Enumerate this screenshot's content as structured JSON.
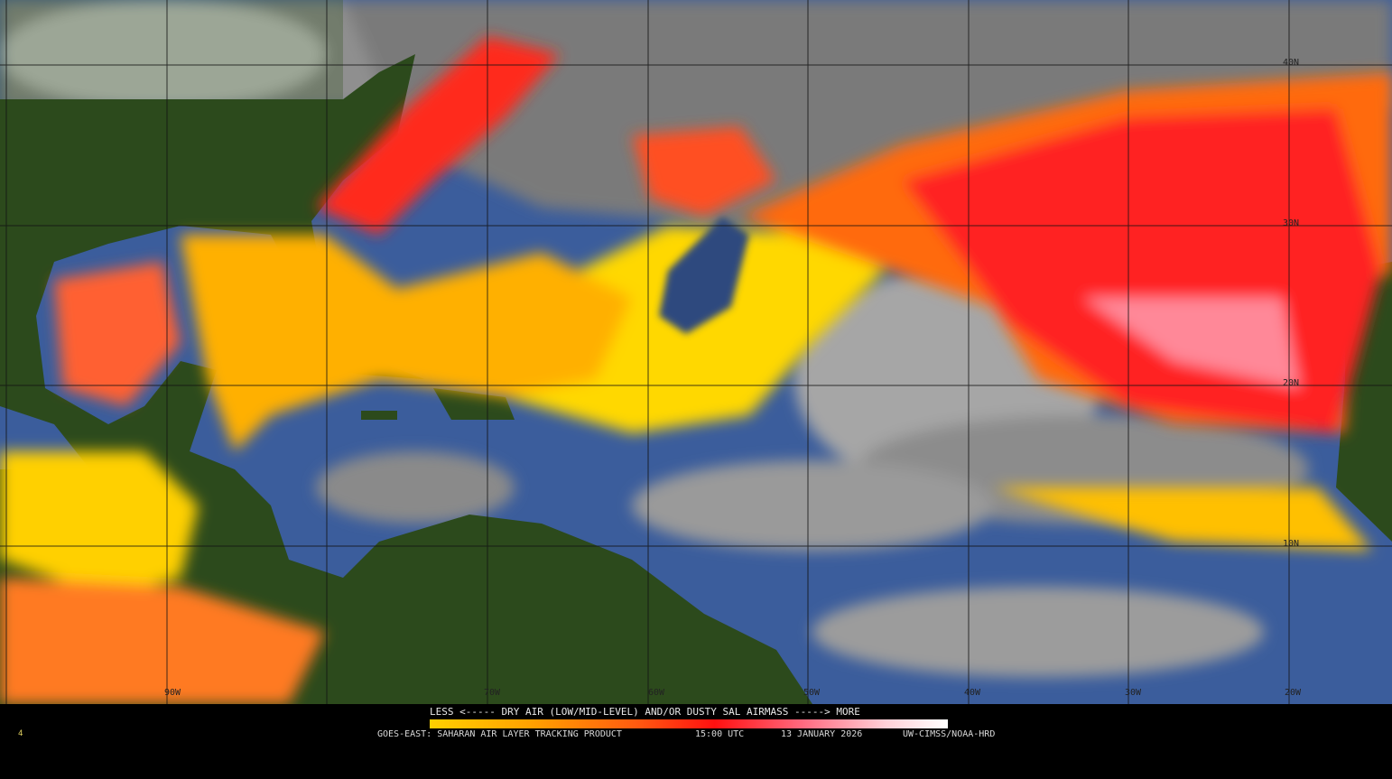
{
  "legend": {
    "title": "LESS <----- DRY AIR (LOW/MID-LEVEL) AND/OR DUSTY SAL AIRMASS -----> MORE",
    "colors": [
      "#ffd000",
      "#ffa000",
      "#ff5a10",
      "#ff1010",
      "#ff6a80",
      "#ffd0d8",
      "#ffffff"
    ]
  },
  "footer": {
    "product": "GOES-EAST: SAHARAN AIR LAYER TRACKING PRODUCT",
    "time": "15:00 UTC",
    "date": "13 JANUARY 2026",
    "credit": "UW-CIMSS/NOAA-HRD",
    "frame_marker": "4"
  },
  "grid": {
    "latitude_labels": [
      "40N",
      "30N",
      "20N",
      "10N"
    ],
    "longitude_labels": [
      "90W",
      "70W",
      "60W",
      "50W",
      "40W",
      "30W",
      "20W"
    ]
  },
  "colors": {
    "ocean_clear": "#3b5d9c",
    "cloud": "#9a9a9a",
    "land": "#2c4a1c",
    "sal_low": "#ffd000",
    "sal_mid": "#ff6a00",
    "sal_high": "#ff1a1a"
  }
}
